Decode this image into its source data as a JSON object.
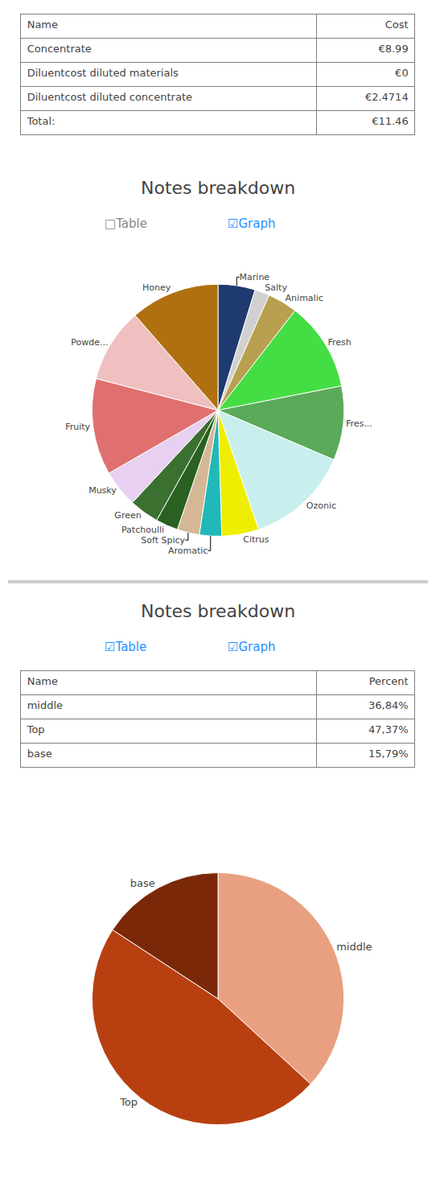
{
  "chart_data": [
    {
      "type": "table",
      "headers": [
        "Name",
        "Cost"
      ],
      "rows": [
        [
          "Concentrate",
          "€8.99"
        ],
        [
          "Diluentcost diluted materials",
          "€0"
        ],
        [
          "Diluentcost diluted concentrate",
          "€2.4714"
        ],
        [
          "Total:",
          "€11.46"
        ]
      ]
    },
    {
      "type": "pie",
      "title": "Notes breakdown",
      "annotations": [
        {
          "text": "□Table",
          "color": "#888888"
        },
        {
          "text": "☑Graph",
          "color": "#1e90ff"
        }
      ],
      "categories": [
        "Marine",
        "Salty",
        "Animalic",
        "Fresh",
        "Fres...",
        "Ozonic",
        "Citrus",
        "Aromatic",
        "Soft Spicy",
        "Patchoulli",
        "Green",
        "Musky",
        "Fruity",
        "Powde...",
        "Honey"
      ],
      "values": [
        5,
        2,
        4,
        12,
        10,
        14,
        5,
        3,
        3,
        3,
        4,
        5,
        13,
        10,
        12
      ],
      "colors": [
        "#1f3a6e",
        "#d0d0d0",
        "#b8a050",
        "#44dd44",
        "#5aaa5a",
        "#c8eeee",
        "#eeee00",
        "#20b8b8",
        "#d4b896",
        "#2a6020",
        "#3a7030",
        "#e8d0f0",
        "#e07070",
        "#f0c0c0",
        "#b07010"
      ]
    },
    {
      "type": "table",
      "title": "Notes breakdown",
      "annotations": [
        {
          "text": "☑Table",
          "color": "#1e90ff"
        },
        {
          "text": "☑Graph",
          "color": "#1e90ff"
        }
      ],
      "headers": [
        "Name",
        "Percent"
      ],
      "rows": [
        [
          "middle",
          "36,84%"
        ],
        [
          "Top",
          "47,37%"
        ],
        [
          "base",
          "15,79%"
        ]
      ]
    },
    {
      "type": "pie",
      "categories": [
        "middle",
        "Top",
        "base"
      ],
      "values": [
        36.84,
        47.37,
        15.79
      ],
      "colors": [
        "#e8a080",
        "#b84010",
        "#7a2808"
      ]
    }
  ]
}
